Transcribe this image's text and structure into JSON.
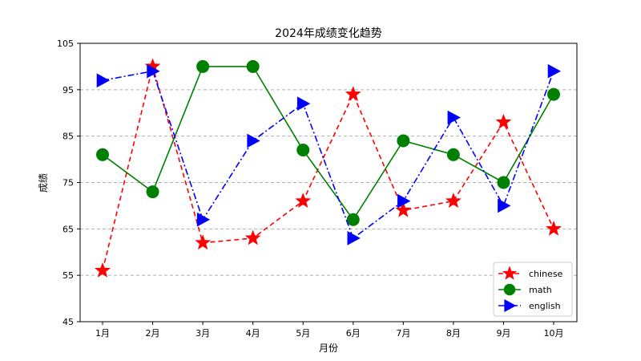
{
  "chart_data": {
    "type": "line",
    "title": "2024年成绩变化趋势",
    "xlabel": "月份",
    "ylabel": "成绩",
    "categories": [
      "1月",
      "2月",
      "3月",
      "4月",
      "5月",
      "6月",
      "7月",
      "8月",
      "9月",
      "10月"
    ],
    "ylim": [
      45,
      105
    ],
    "yticks": [
      45,
      55,
      65,
      75,
      85,
      95,
      105
    ],
    "grid": "y-dashed",
    "legend_position": "lower-right",
    "series": [
      {
        "name": "chinese",
        "values": [
          56,
          100,
          62,
          63,
          71,
          94,
          69,
          71,
          88,
          65
        ],
        "color": "#ff0000",
        "linestyle": "dashed",
        "marker": "star"
      },
      {
        "name": "math",
        "values": [
          81,
          73,
          100,
          100,
          82,
          67,
          84,
          81,
          75,
          94
        ],
        "color": "#008000",
        "linestyle": "solid",
        "marker": "circle"
      },
      {
        "name": "english",
        "values": [
          97,
          99,
          67,
          84,
          92,
          63,
          71,
          89,
          70,
          99
        ],
        "color": "#0000ff",
        "linestyle": "dashdot",
        "marker": "triangle-right"
      }
    ]
  }
}
